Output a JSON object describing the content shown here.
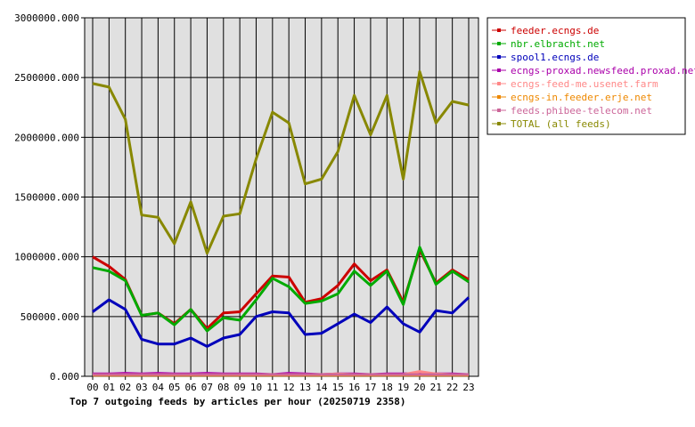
{
  "chart_data": {
    "type": "line",
    "title": "Top 7 outgoing feeds by articles per hour (20250719 2358)",
    "xlabel": "",
    "ylabel": "",
    "ylim": [
      0,
      3000000
    ],
    "y_ticks": [
      0,
      500000,
      1000000,
      1500000,
      2000000,
      2500000,
      3000000
    ],
    "y_tick_labels": [
      "0.000",
      "500000.000",
      "1000000.000",
      "1500000.000",
      "2000000.000",
      "2500000.000",
      "3000000.000"
    ],
    "grid": true,
    "legend_placement": "right",
    "categories": [
      "00",
      "01",
      "02",
      "03",
      "04",
      "05",
      "06",
      "07",
      "08",
      "09",
      "10",
      "11",
      "12",
      "13",
      "14",
      "15",
      "16",
      "17",
      "18",
      "19",
      "20",
      "21",
      "22",
      "23"
    ],
    "series": [
      {
        "name": "feeder.ecngs.de",
        "color": "#cc0000",
        "values": [
          1000000,
          920000,
          810000,
          510000,
          530000,
          440000,
          560000,
          400000,
          530000,
          540000,
          690000,
          840000,
          830000,
          620000,
          650000,
          760000,
          940000,
          800000,
          890000,
          620000,
          1060000,
          780000,
          890000,
          810000
        ]
      },
      {
        "name": "nbr.elbracht.net",
        "color": "#00aa00",
        "values": [
          910000,
          880000,
          800000,
          510000,
          530000,
          430000,
          560000,
          380000,
          490000,
          470000,
          640000,
          820000,
          750000,
          610000,
          630000,
          690000,
          880000,
          760000,
          880000,
          600000,
          1080000,
          770000,
          880000,
          790000
        ]
      },
      {
        "name": "spool1.ecngs.de",
        "color": "#0000bb",
        "values": [
          540000,
          640000,
          560000,
          310000,
          270000,
          270000,
          320000,
          250000,
          320000,
          350000,
          500000,
          540000,
          530000,
          350000,
          360000,
          440000,
          520000,
          450000,
          580000,
          440000,
          370000,
          550000,
          530000,
          660000
        ]
      },
      {
        "name": "ecngs-proxad.newsfeed.proxad.net",
        "color": "#aa00aa",
        "values": [
          20000,
          20000,
          25000,
          20000,
          25000,
          20000,
          20000,
          25000,
          20000,
          20000,
          20000,
          15000,
          25000,
          20000,
          15000,
          20000,
          20000,
          15000,
          20000,
          20000,
          25000,
          20000,
          20000,
          15000
        ]
      },
      {
        "name": "ecngs-feed-me.usenet.farm",
        "color": "#ff8888",
        "values": [
          15000,
          15000,
          15000,
          15000,
          15000,
          15000,
          15000,
          15000,
          15000,
          15000,
          15000,
          15000,
          15000,
          15000,
          15000,
          20000,
          15000,
          15000,
          15000,
          15000,
          40000,
          20000,
          15000,
          15000
        ]
      },
      {
        "name": "ecngs-in.feeder.erje.net",
        "color": "#ee8800",
        "values": [
          10000,
          10000,
          10000,
          10000,
          10000,
          10000,
          10000,
          10000,
          10000,
          10000,
          10000,
          10000,
          10000,
          10000,
          10000,
          10000,
          10000,
          10000,
          10000,
          10000,
          10000,
          10000,
          10000,
          10000
        ]
      },
      {
        "name": "feeds.phibee-telecom.net",
        "color": "#cc6699",
        "values": [
          15000,
          15000,
          15000,
          15000,
          15000,
          15000,
          15000,
          15000,
          15000,
          15000,
          15000,
          15000,
          15000,
          15000,
          15000,
          15000,
          15000,
          15000,
          15000,
          15000,
          15000,
          15000,
          15000,
          15000
        ]
      },
      {
        "name": "TOTAL (all feeds)",
        "color": "#888800",
        "values": [
          2450000,
          2420000,
          2150000,
          1350000,
          1330000,
          1110000,
          1460000,
          1030000,
          1340000,
          1360000,
          1820000,
          2210000,
          2120000,
          1610000,
          1650000,
          1880000,
          2350000,
          2020000,
          2350000,
          1650000,
          2550000,
          2120000,
          2300000,
          2270000
        ]
      }
    ]
  }
}
